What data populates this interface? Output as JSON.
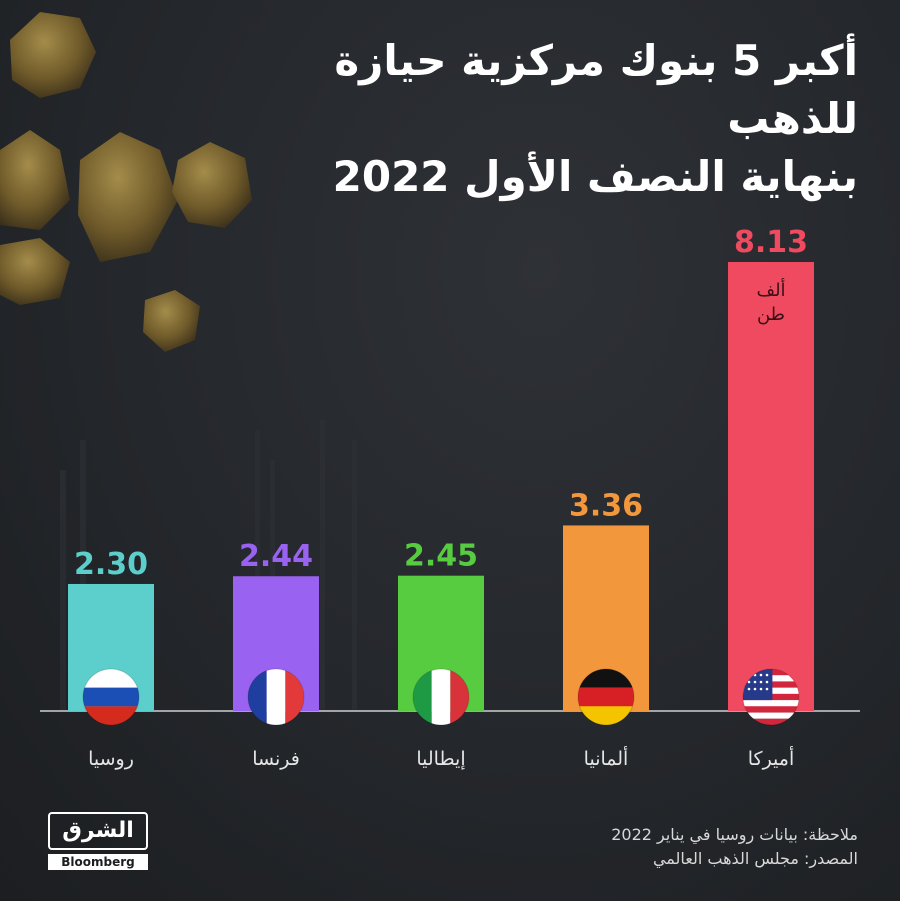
{
  "title_line1": "أكبر 5 بنوك مركزية حيازة للذهب",
  "title_line2": "بنهاية النصف الأول 2022",
  "chart_data": {
    "type": "bar",
    "title": "أكبر 5 بنوك مركزية حيازة للذهب بنهاية النصف الأول 2022",
    "categories": [
      "روسيا",
      "فرنسا",
      "إيطاليا",
      "ألمانيا",
      "أميركا"
    ],
    "values": [
      2.3,
      2.44,
      2.45,
      3.36,
      8.13
    ],
    "value_labels": [
      "2.30",
      "2.44",
      "2.45",
      "3.36",
      "8.13"
    ],
    "unit_line1": "ألف",
    "unit_line2": "طن",
    "bar_colors": [
      "#5ccfcc",
      "#9a62f0",
      "#58cc41",
      "#f2973c",
      "#ef4a5f"
    ],
    "flags": [
      "russia-flag",
      "france-flag",
      "italy-flag",
      "germany-flag",
      "usa-flag"
    ]
  },
  "note": "ملاحظة: بيانات روسيا في يناير 2022",
  "source": "المصدر: مجلس الذهب العالمي",
  "logo": {
    "name": "الشرق",
    "sub": "Bloomberg"
  }
}
